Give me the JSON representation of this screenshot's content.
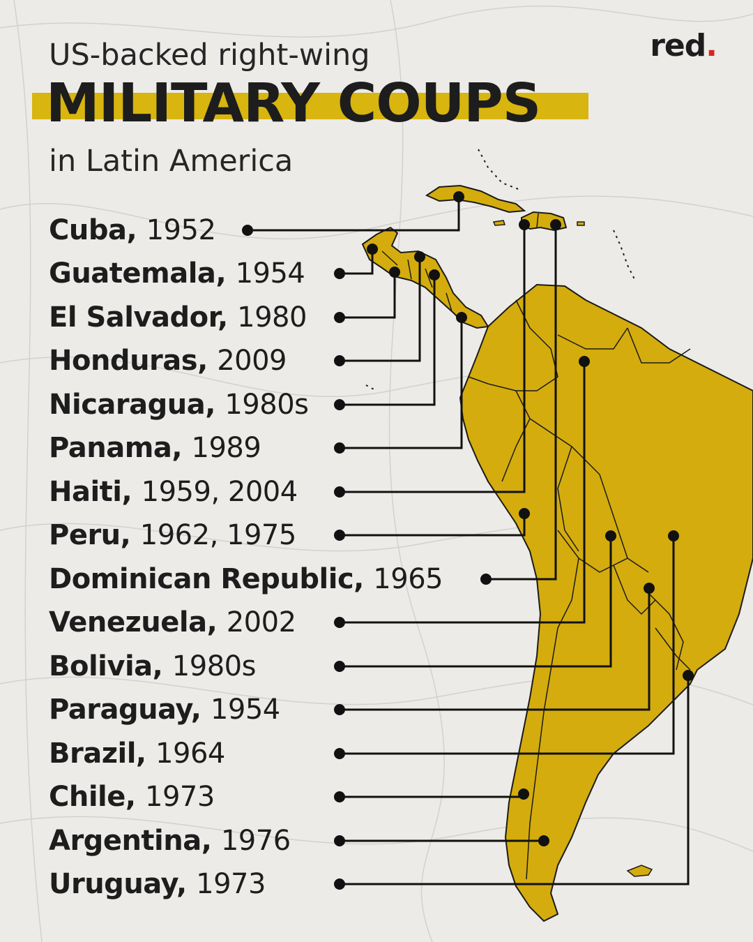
{
  "brand": {
    "logo_text": "red",
    "logo_dot": ".",
    "accent_color": "#d9241b"
  },
  "header": {
    "line1": "US-backed right-wing",
    "line2": "MILITARY COUPS",
    "line3": "in Latin America",
    "highlight_color": "#d8b50f"
  },
  "map": {
    "fill_color": "#d4ac0d",
    "border_color": "#1b1b1b"
  },
  "coups": [
    {
      "country": "Cuba",
      "years": "1952"
    },
    {
      "country": "Guatemala",
      "years": "1954"
    },
    {
      "country": "El Salvador",
      "years": "1980"
    },
    {
      "country": "Honduras",
      "years": "2009"
    },
    {
      "country": "Nicaragua",
      "years": "1980s"
    },
    {
      "country": "Panama",
      "years": "1989"
    },
    {
      "country": "Haiti",
      "years": "1959, 2004"
    },
    {
      "country": "Peru",
      "years": "1962, 1975"
    },
    {
      "country": "Dominican Republic",
      "years": "1965"
    },
    {
      "country": "Venezuela",
      "years": "2002"
    },
    {
      "country": "Bolivia",
      "years": "1980s"
    },
    {
      "country": "Paraguay",
      "years": "1954"
    },
    {
      "country": "Brazil",
      "years": "1964"
    },
    {
      "country": "Chile",
      "years": "1973"
    },
    {
      "country": "Argentina",
      "years": "1976"
    },
    {
      "country": "Uruguay",
      "years": "1973"
    }
  ]
}
